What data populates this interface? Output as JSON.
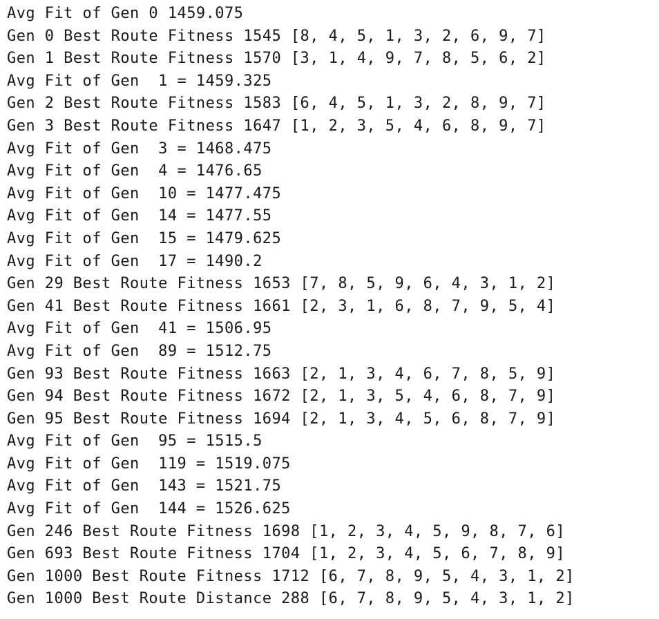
{
  "console": {
    "lines": [
      "Avg Fit of Gen 0 1459.075",
      "Gen 0 Best Route Fitness 1545 [8, 4, 5, 1, 3, 2, 6, 9, 7]",
      "Gen 1 Best Route Fitness 1570 [3, 1, 4, 9, 7, 8, 5, 6, 2]",
      "Avg Fit of Gen  1 = 1459.325",
      "Gen 2 Best Route Fitness 1583 [6, 4, 5, 1, 3, 2, 8, 9, 7]",
      "Gen 3 Best Route Fitness 1647 [1, 2, 3, 5, 4, 6, 8, 9, 7]",
      "Avg Fit of Gen  3 = 1468.475",
      "Avg Fit of Gen  4 = 1476.65",
      "Avg Fit of Gen  10 = 1477.475",
      "Avg Fit of Gen  14 = 1477.55",
      "Avg Fit of Gen  15 = 1479.625",
      "Avg Fit of Gen  17 = 1490.2",
      "Gen 29 Best Route Fitness 1653 [7, 8, 5, 9, 6, 4, 3, 1, 2]",
      "Gen 41 Best Route Fitness 1661 [2, 3, 1, 6, 8, 7, 9, 5, 4]",
      "Avg Fit of Gen  41 = 1506.95",
      "Avg Fit of Gen  89 = 1512.75",
      "Gen 93 Best Route Fitness 1663 [2, 1, 3, 4, 6, 7, 8, 5, 9]",
      "Gen 94 Best Route Fitness 1672 [2, 1, 3, 5, 4, 6, 8, 7, 9]",
      "Gen 95 Best Route Fitness 1694 [2, 1, 3, 4, 5, 6, 8, 7, 9]",
      "Avg Fit of Gen  95 = 1515.5",
      "Avg Fit of Gen  119 = 1519.075",
      "Avg Fit of Gen  143 = 1521.75",
      "Avg Fit of Gen  144 = 1526.625",
      "Gen 246 Best Route Fitness 1698 [1, 2, 3, 4, 5, 9, 8, 7, 6]",
      "Gen 693 Best Route Fitness 1704 [1, 2, 3, 4, 5, 6, 7, 8, 9]",
      "Gen 1000 Best Route Fitness 1712 [6, 7, 8, 9, 5, 4, 3, 1, 2]",
      "Gen 1000 Best Route Distance 288 [6, 7, 8, 9, 5, 4, 3, 1, 2]"
    ]
  },
  "colors": {
    "background": "#ffffff",
    "text": "#1a1a1a"
  }
}
